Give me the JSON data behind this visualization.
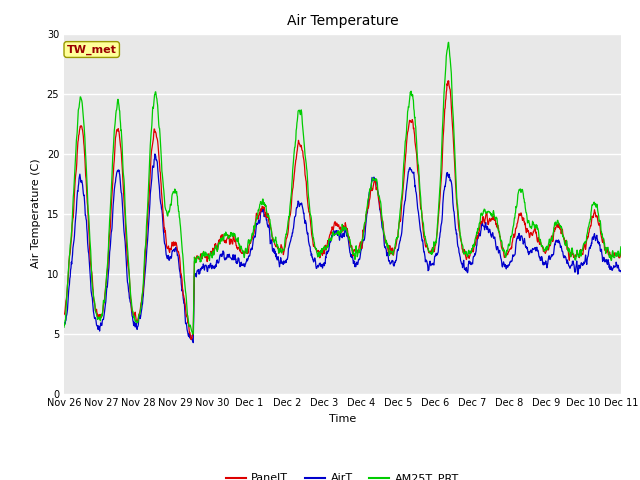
{
  "title": "Air Temperature",
  "ylabel": "Air Temperature (C)",
  "xlabel": "Time",
  "annotation": "TW_met",
  "annotation_color": "#990000",
  "annotation_bg": "#ffff99",
  "annotation_border": "#999900",
  "ylim": [
    0,
    30
  ],
  "bg_color": "#e8e8e8",
  "line_colors": {
    "PanelT": "#dd0000",
    "AirT": "#0000cc",
    "AM25T_PRT": "#00cc00"
  },
  "legend_labels": [
    "PanelT",
    "AirT",
    "AM25T_PRT"
  ],
  "xtick_labels": [
    "Nov 26",
    "Nov 27",
    "Nov 28",
    "Nov 29",
    "Nov 30",
    "Dec 1",
    "Dec 2",
    "Dec 3",
    "Dec 4",
    "Dec 5",
    "Dec 6",
    "Dec 7",
    "Dec 8",
    "Dec 9",
    "Dec 10",
    "Dec 11"
  ],
  "ytick_vals": [
    0,
    5,
    10,
    15,
    20,
    25,
    30
  ],
  "title_fontsize": 10,
  "tick_fontsize": 7,
  "axis_label_fontsize": 8
}
